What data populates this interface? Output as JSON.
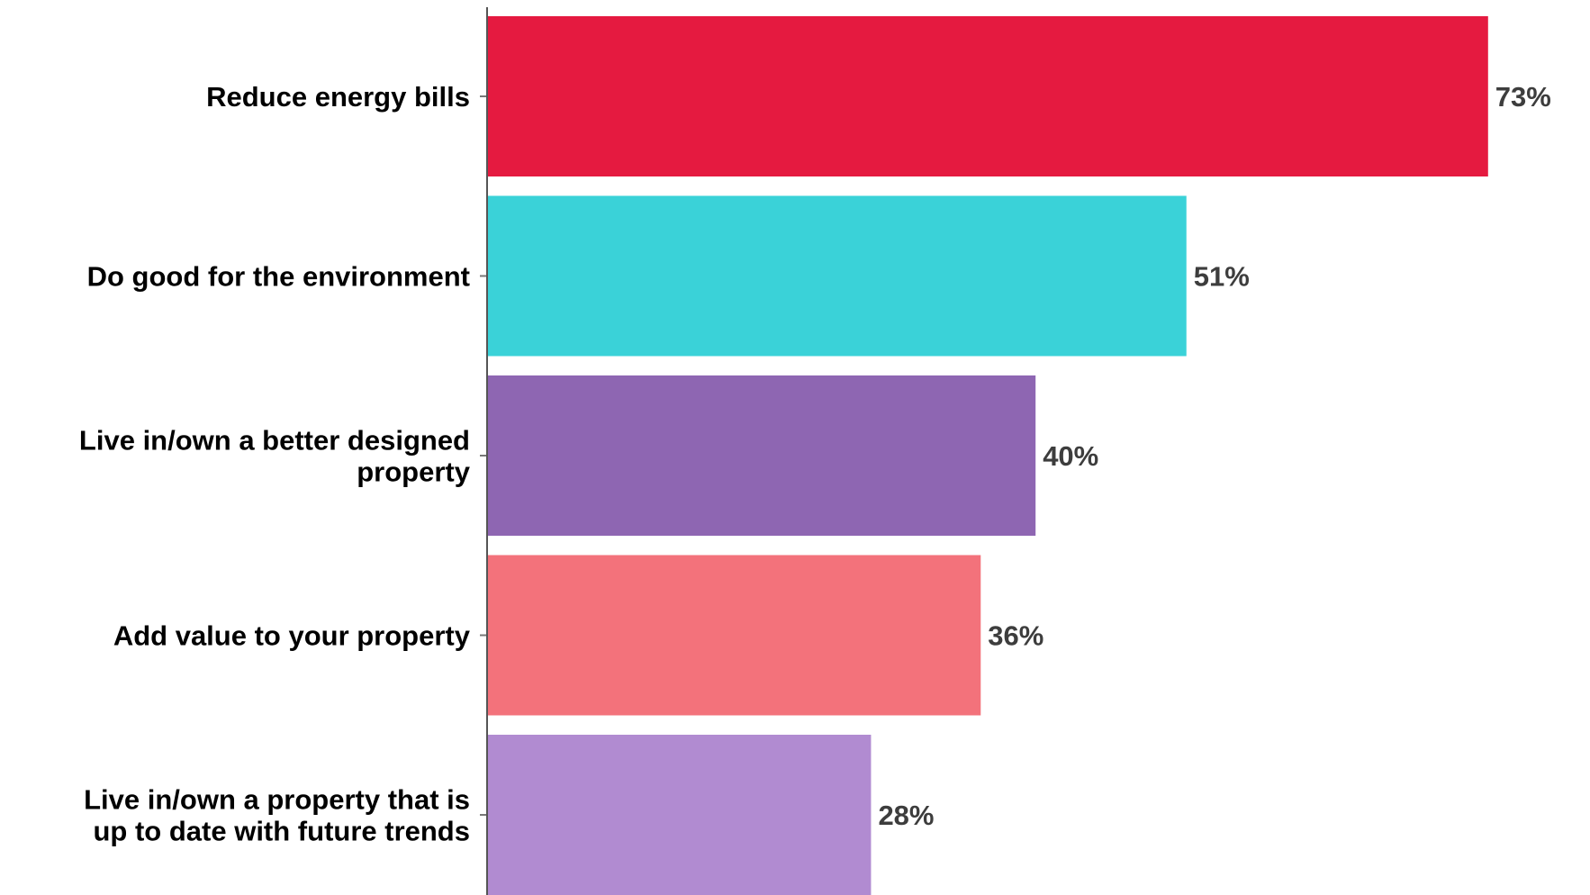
{
  "chart_data": {
    "type": "bar",
    "orientation": "horizontal",
    "categories": [
      [
        "Reduce energy bills"
      ],
      [
        "Do good for the environment"
      ],
      [
        "Live in/own a better designed",
        "property"
      ],
      [
        "Add value to your property"
      ],
      [
        "Live in/own a property that is",
        "up to date with future trends"
      ]
    ],
    "values": [
      73,
      51,
      40,
      36,
      28
    ],
    "value_labels": [
      "73%",
      "51%",
      "40%",
      "36%",
      "28%"
    ],
    "colors": [
      "#e51a40",
      "#3ad2d8",
      "#8e66b2",
      "#f3727b",
      "#b18bd1"
    ],
    "xlim": [
      0,
      100
    ],
    "title": "",
    "xlabel": "",
    "ylabel": "",
    "grid": false,
    "legend": "none"
  }
}
